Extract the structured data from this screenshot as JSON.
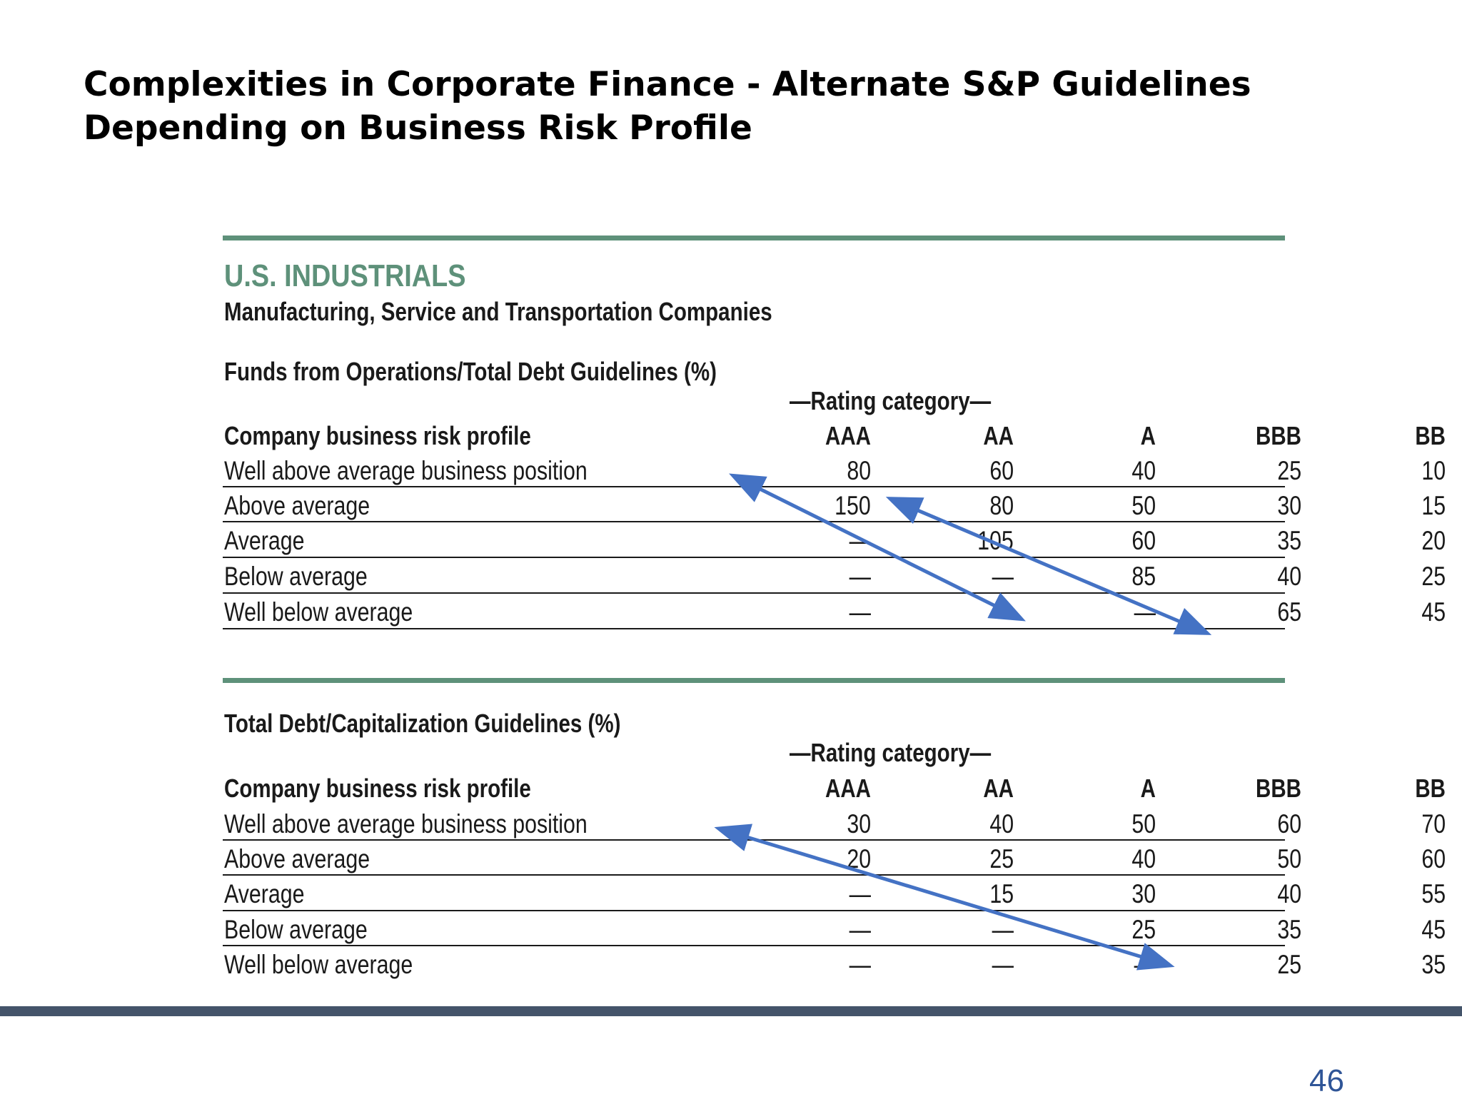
{
  "slide": {
    "title_line1": "Complexities in Corporate Finance - Alternate S&P Guidelines",
    "title_line2": "Depending on Business Risk Profile",
    "page_number": "46"
  },
  "figure": {
    "section_title": "U.S. INDUSTRIALS",
    "section_subtitle": "Manufacturing, Service and Transportation Companies"
  },
  "tables": [
    {
      "title": "Funds from Operations/Total Debt Guidelines (%)",
      "rating_header": "—Rating category—",
      "row_header": "Company business risk profile",
      "columns": [
        "AAA",
        "AA",
        "A",
        "BBB",
        "BB"
      ],
      "rows": [
        {
          "label": "Well above average business position",
          "values": [
            "80",
            "60",
            "40",
            "25",
            "10"
          ]
        },
        {
          "label": "Above average",
          "values": [
            "150",
            "80",
            "50",
            "30",
            "15"
          ]
        },
        {
          "label": "Average",
          "values": [
            "—",
            "105",
            "60",
            "35",
            "20"
          ]
        },
        {
          "label": "Below average",
          "values": [
            "—",
            "—",
            "85",
            "40",
            "25"
          ]
        },
        {
          "label": "Well below average",
          "values": [
            "—",
            "—",
            "—",
            "65",
            "45"
          ]
        }
      ]
    },
    {
      "title": "Total Debt/Capitalization Guidelines (%)",
      "rating_header": "—Rating category—",
      "row_header": "Company business risk profile",
      "columns": [
        "AAA",
        "AA",
        "A",
        "BBB",
        "BB"
      ],
      "rows": [
        {
          "label": "Well above average business position",
          "values": [
            "30",
            "40",
            "50",
            "60",
            "70"
          ]
        },
        {
          "label": "Above average",
          "values": [
            "20",
            "25",
            "40",
            "50",
            "60"
          ]
        },
        {
          "label": "Average",
          "values": [
            "—",
            "15",
            "30",
            "40",
            "55"
          ]
        },
        {
          "label": "Below average",
          "values": [
            "—",
            "—",
            "25",
            "35",
            "45"
          ]
        },
        {
          "label": "Well below average",
          "values": [
            "—",
            "—",
            "—",
            "25",
            "35"
          ]
        }
      ]
    }
  ],
  "colors": {
    "accent_green": "#5e917a",
    "arrow_blue": "#4472c4",
    "bottom_bar": "#44546a",
    "page_number": "#2f5597"
  }
}
